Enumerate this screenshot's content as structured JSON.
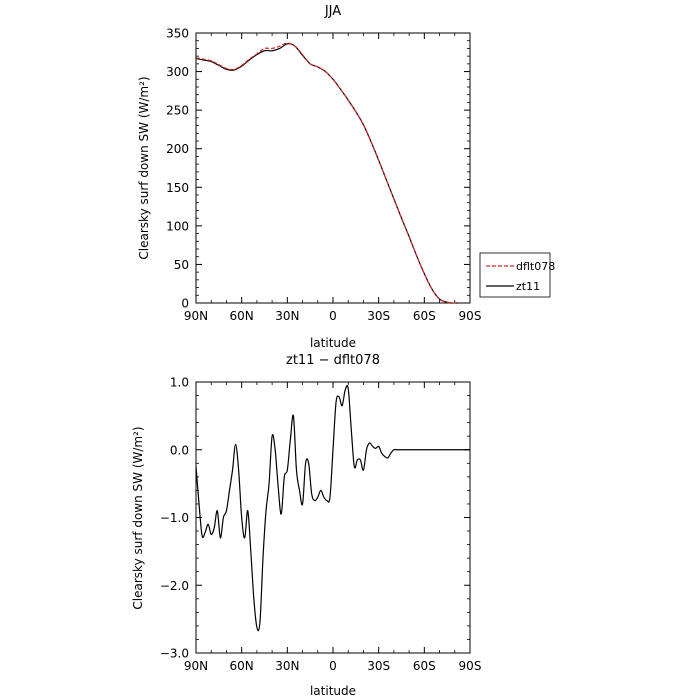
{
  "chart_data": [
    {
      "type": "line",
      "title": "JJA",
      "xlabel": "latitude",
      "ylabel": "Clearsky surf down SW (W/m²)",
      "xlim": [
        90,
        -90
      ],
      "ylim": [
        0,
        350
      ],
      "x_ticks": [
        90,
        60,
        30,
        0,
        -30,
        -60,
        -90
      ],
      "x_tick_labels": [
        "90N",
        "60N",
        "30N",
        "0",
        "30S",
        "60S",
        "90S"
      ],
      "y_ticks": [
        0,
        50,
        100,
        150,
        200,
        250,
        300,
        350
      ],
      "y_tick_labels": [
        "0",
        "50",
        "100",
        "150",
        "200",
        "250",
        "300",
        "350"
      ],
      "legend": "outside-right",
      "grid": false,
      "series": [
        {
          "name": "dflt078",
          "color": "#d62728",
          "dash": "dashed",
          "x": [
            90,
            85,
            80,
            75,
            70,
            65,
            60,
            55,
            50,
            45,
            40,
            35,
            30,
            25,
            20,
            15,
            10,
            5,
            0,
            -5,
            -10,
            -15,
            -20,
            -25,
            -30,
            -35,
            -40,
            -45,
            -50,
            -55,
            -60,
            -65,
            -70,
            -75,
            -78,
            -80,
            -82
          ],
          "y": [
            318,
            316,
            314,
            309,
            304,
            303,
            308,
            316,
            323,
            330,
            330,
            333,
            337,
            333,
            322,
            310,
            306,
            300,
            290,
            277,
            263,
            248,
            231,
            209,
            185,
            160,
            135,
            110,
            86,
            61,
            38,
            18,
            5,
            1,
            0,
            0,
            0
          ]
        },
        {
          "name": "zt11",
          "color": "#000000",
          "dash": "solid",
          "x": [
            90,
            85,
            80,
            75,
            70,
            65,
            60,
            55,
            50,
            45,
            40,
            35,
            30,
            25,
            20,
            15,
            10,
            5,
            0,
            -5,
            -10,
            -15,
            -20,
            -25,
            -30,
            -35,
            -40,
            -45,
            -50,
            -55,
            -60,
            -65,
            -70,
            -75,
            -78,
            -80,
            -82
          ],
          "y": [
            317,
            315,
            313,
            308,
            303,
            302,
            307,
            315,
            322,
            327,
            327,
            330,
            336,
            333,
            321,
            310,
            306,
            300,
            290,
            277,
            263,
            248,
            231,
            209,
            185,
            160,
            135,
            110,
            86,
            61,
            38,
            18,
            5,
            1,
            0,
            0,
            0
          ]
        }
      ]
    },
    {
      "type": "line",
      "title": "zt11 − dflt078",
      "xlabel": "latitude",
      "ylabel": "Clearsky surf down SW (W/m²)",
      "xlim": [
        90,
        -90
      ],
      "ylim": [
        -3.0,
        1.0
      ],
      "x_ticks": [
        90,
        60,
        30,
        0,
        -30,
        -60,
        -90
      ],
      "x_tick_labels": [
        "90N",
        "60N",
        "30N",
        "0",
        "30S",
        "60S",
        "90S"
      ],
      "y_ticks": [
        -3.0,
        -2.0,
        -1.0,
        0.0,
        1.0
      ],
      "y_tick_labels": [
        "−3.0",
        "−2.0",
        "−1.0",
        "0.0",
        "1.0"
      ],
      "grid": false,
      "series": [
        {
          "color": "#000000",
          "x": [
            90,
            88,
            86,
            84,
            82,
            80,
            78,
            76,
            74,
            72,
            70,
            68,
            66,
            64,
            62,
            60,
            58,
            56,
            54,
            52,
            50,
            48,
            46,
            44,
            42,
            40,
            38,
            36,
            34,
            32,
            30,
            28,
            26,
            24,
            22,
            20,
            18,
            16,
            14,
            12,
            10,
            8,
            6,
            4,
            2,
            0,
            -2,
            -4,
            -6,
            -8,
            -10,
            -12,
            -14,
            -16,
            -18,
            -20,
            -22,
            -24,
            -26,
            -28,
            -30,
            -32,
            -34,
            -36,
            -38,
            -40,
            -42,
            -44,
            -46,
            -48,
            -50,
            -52,
            -54,
            -56,
            -58,
            -60,
            -62,
            -64,
            -66,
            -68,
            -70,
            -72,
            -74,
            -76,
            -78,
            -80,
            -82,
            -84,
            -86,
            -88,
            -90
          ],
          "y": [
            -0.25,
            -0.8,
            -1.27,
            -1.22,
            -1.1,
            -1.25,
            -1.15,
            -0.9,
            -1.3,
            -1.0,
            -0.9,
            -0.6,
            -0.3,
            0.08,
            -0.3,
            -1.0,
            -1.3,
            -0.9,
            -1.5,
            -2.2,
            -2.62,
            -2.55,
            -1.6,
            -0.9,
            -0.5,
            0.2,
            0.0,
            -0.55,
            -0.95,
            -0.4,
            -0.3,
            0.15,
            0.5,
            -0.3,
            -0.6,
            -0.8,
            -0.2,
            -0.2,
            -0.65,
            -0.75,
            -0.7,
            -0.6,
            -0.7,
            -0.75,
            -0.7,
            0.0,
            0.7,
            0.78,
            0.65,
            0.88,
            0.9,
            0.3,
            -0.25,
            -0.15,
            -0.15,
            -0.3,
            0.0,
            0.1,
            0.05,
            0.02,
            0.05,
            -0.05,
            -0.1,
            -0.12,
            -0.05,
            0.0,
            0.0,
            0.0,
            0.0,
            0.0,
            0.0,
            0.0,
            0.0,
            0.0,
            0.0,
            0.0,
            0.0,
            0.0,
            0.0,
            0.0,
            0.0,
            0.0,
            0.0,
            0.0,
            0.0,
            0.0,
            0.0,
            0.0,
            0.0,
            0.0,
            0.0
          ]
        }
      ]
    }
  ]
}
